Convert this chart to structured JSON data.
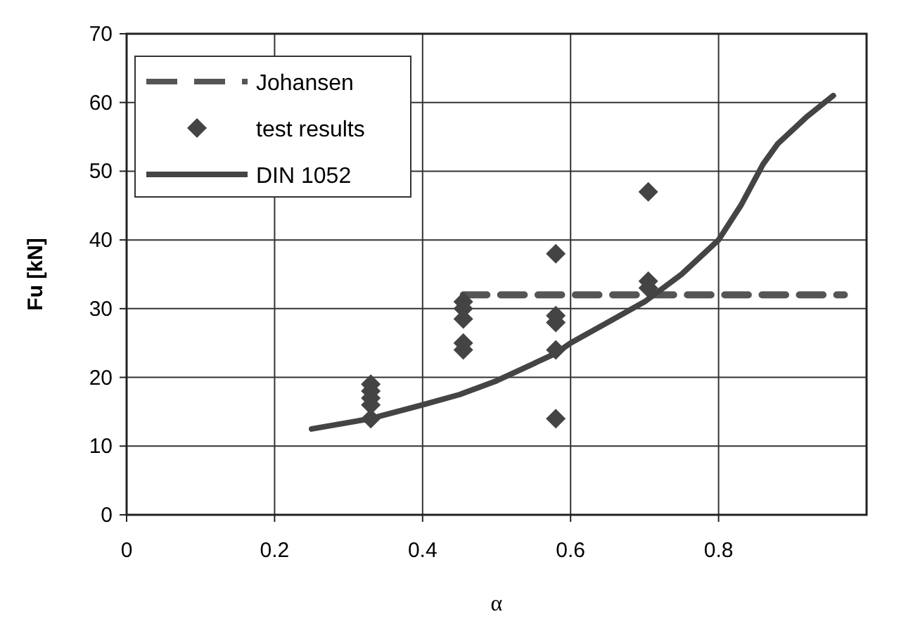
{
  "chart_data": {
    "type": "line",
    "xlabel": "α",
    "ylabel": "Fu [kN]",
    "xlim": [
      0,
      1
    ],
    "ylim": [
      0,
      70
    ],
    "xticks": [
      0,
      0.2,
      0.4,
      0.6,
      0.8
    ],
    "yticks": [
      0,
      10,
      20,
      30,
      40,
      50,
      60,
      70
    ],
    "grid": true,
    "legend": "top left",
    "series": [
      {
        "name": "Johansen",
        "line_style": "dashed",
        "marker": "none",
        "color": "#555555",
        "x": [
          0.455,
          0.97
        ],
        "values": [
          32,
          32
        ]
      },
      {
        "name": "test results",
        "type": "scatter",
        "marker": "diamond",
        "color": "#444444",
        "x": [
          0.33,
          0.33,
          0.33,
          0.33,
          0.33,
          0.455,
          0.455,
          0.455,
          0.455,
          0.455,
          0.58,
          0.58,
          0.58,
          0.58,
          0.58,
          0.705,
          0.705,
          0.705
        ],
        "values": [
          19,
          18,
          17,
          16,
          14,
          31,
          30,
          28.5,
          25,
          24,
          38,
          29,
          28,
          24,
          14,
          47,
          34,
          33
        ]
      },
      {
        "name": "DIN 1052",
        "line_style": "solid",
        "marker": "none",
        "color": "#444444",
        "x": [
          0.25,
          0.33,
          0.4,
          0.45,
          0.5,
          0.55,
          0.58,
          0.6,
          0.65,
          0.7,
          0.75,
          0.8,
          0.83,
          0.86,
          0.88,
          0.92,
          0.955
        ],
        "values": [
          12.5,
          14,
          16,
          17.5,
          19.5,
          22,
          23.5,
          25,
          28,
          31,
          35,
          40,
          45,
          51,
          54,
          58,
          61
        ]
      }
    ]
  }
}
